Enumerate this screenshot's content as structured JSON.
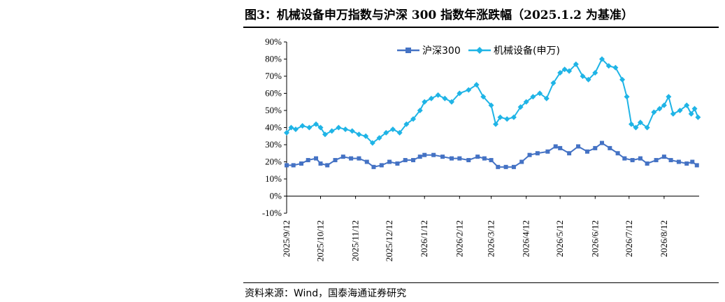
{
  "title": "图3：机械设备申万指数与沪深 300 指数年涨跌幅（2025.1.2 为基准）",
  "source": "资料来源：Wind，国泰海通证券研究",
  "colors": {
    "hs300": "#4472C4",
    "machinery": "#1FB4E6"
  },
  "chart_data": {
    "type": "line",
    "title": "图3：机械设备申万指数与沪深 300 指数年涨跌幅（2025.1.2 为基准）",
    "xlabel": "",
    "ylabel": "",
    "ylim": [
      -10,
      90
    ],
    "yticks": [
      -10,
      0,
      10,
      20,
      30,
      40,
      50,
      60,
      70,
      80,
      90
    ],
    "ytick_labels": [
      "-10%",
      "0%",
      "10%",
      "20%",
      "30%",
      "40%",
      "50%",
      "60%",
      "70%",
      "80%",
      "90%"
    ],
    "xlim": [
      "2025-09-12",
      "2026-09-12"
    ],
    "xticks": [
      "2025/9/12",
      "2025/10/12",
      "2025/11/12",
      "2025/12/12",
      "2026/1/12",
      "2026/2/12",
      "2026/3/12",
      "2026/4/12",
      "2026/5/12",
      "2026/6/12",
      "2026/7/12",
      "2026/8/12"
    ],
    "legend_position": "top-center",
    "grid": false,
    "series": [
      {
        "name": "沪深300",
        "color": "#4472C4",
        "marker": "square",
        "points": [
          [
            "2025-09-12",
            18
          ],
          [
            "2025-09-18",
            18
          ],
          [
            "2025-09-25",
            19
          ],
          [
            "2025-10-01",
            21
          ],
          [
            "2025-10-08",
            22
          ],
          [
            "2025-10-12",
            19
          ],
          [
            "2025-10-18",
            18
          ],
          [
            "2025-10-25",
            21
          ],
          [
            "2025-11-01",
            23
          ],
          [
            "2025-11-08",
            22
          ],
          [
            "2025-11-15",
            22
          ],
          [
            "2025-11-22",
            20
          ],
          [
            "2025-11-28",
            17
          ],
          [
            "2025-12-05",
            18
          ],
          [
            "2025-12-12",
            20
          ],
          [
            "2025-12-19",
            19
          ],
          [
            "2025-12-26",
            21
          ],
          [
            "2026-01-02",
            21
          ],
          [
            "2026-01-08",
            23
          ],
          [
            "2026-01-12",
            24
          ],
          [
            "2026-01-20",
            24
          ],
          [
            "2026-01-28",
            23
          ],
          [
            "2026-02-05",
            22
          ],
          [
            "2026-02-12",
            22
          ],
          [
            "2026-02-20",
            21
          ],
          [
            "2026-02-28",
            23
          ],
          [
            "2026-03-06",
            22
          ],
          [
            "2026-03-12",
            21
          ],
          [
            "2026-03-18",
            17
          ],
          [
            "2026-03-25",
            17
          ],
          [
            "2026-04-01",
            17
          ],
          [
            "2026-04-08",
            20
          ],
          [
            "2026-04-15",
            24
          ],
          [
            "2026-04-22",
            25
          ],
          [
            "2026-05-01",
            26
          ],
          [
            "2026-05-08",
            29
          ],
          [
            "2026-05-12",
            28
          ],
          [
            "2026-05-20",
            25
          ],
          [
            "2026-05-28",
            29
          ],
          [
            "2026-06-05",
            26
          ],
          [
            "2026-06-12",
            28
          ],
          [
            "2026-06-18",
            31
          ],
          [
            "2026-06-25",
            28
          ],
          [
            "2026-07-02",
            25
          ],
          [
            "2026-07-08",
            22
          ],
          [
            "2026-07-15",
            21
          ],
          [
            "2026-07-22",
            22
          ],
          [
            "2026-07-28",
            19
          ],
          [
            "2026-08-05",
            21
          ],
          [
            "2026-08-12",
            23
          ],
          [
            "2026-08-18",
            21
          ],
          [
            "2026-08-25",
            20
          ],
          [
            "2026-09-01",
            19
          ],
          [
            "2026-09-06",
            20
          ],
          [
            "2026-09-10",
            18
          ]
        ]
      },
      {
        "name": "机械设备(申万)",
        "color": "#1FB4E6",
        "marker": "diamond",
        "points": [
          [
            "2025-09-12",
            37
          ],
          [
            "2025-09-16",
            40
          ],
          [
            "2025-09-20",
            39
          ],
          [
            "2025-09-26",
            41
          ],
          [
            "2025-10-02",
            40
          ],
          [
            "2025-10-08",
            42
          ],
          [
            "2025-10-12",
            40
          ],
          [
            "2025-10-16",
            36
          ],
          [
            "2025-10-22",
            38
          ],
          [
            "2025-10-28",
            40
          ],
          [
            "2025-11-03",
            39
          ],
          [
            "2025-11-09",
            38
          ],
          [
            "2025-11-15",
            36
          ],
          [
            "2025-11-21",
            35
          ],
          [
            "2025-11-27",
            31
          ],
          [
            "2025-12-03",
            34
          ],
          [
            "2025-12-09",
            37
          ],
          [
            "2025-12-15",
            39
          ],
          [
            "2025-12-21",
            37
          ],
          [
            "2025-12-27",
            42
          ],
          [
            "2026-01-02",
            45
          ],
          [
            "2026-01-08",
            50
          ],
          [
            "2026-01-12",
            55
          ],
          [
            "2026-01-18",
            57
          ],
          [
            "2026-01-24",
            59
          ],
          [
            "2026-01-30",
            57
          ],
          [
            "2026-02-05",
            55
          ],
          [
            "2026-02-12",
            60
          ],
          [
            "2026-02-20",
            62
          ],
          [
            "2026-02-27",
            65
          ],
          [
            "2026-03-05",
            58
          ],
          [
            "2026-03-12",
            53
          ],
          [
            "2026-03-16",
            42
          ],
          [
            "2026-03-20",
            46
          ],
          [
            "2026-03-26",
            45
          ],
          [
            "2026-04-01",
            46
          ],
          [
            "2026-04-07",
            52
          ],
          [
            "2026-04-12",
            55
          ],
          [
            "2026-04-18",
            58
          ],
          [
            "2026-04-24",
            60
          ],
          [
            "2026-04-30",
            57
          ],
          [
            "2026-05-06",
            66
          ],
          [
            "2026-05-12",
            72
          ],
          [
            "2026-05-16",
            74
          ],
          [
            "2026-05-20",
            73
          ],
          [
            "2026-05-26",
            77
          ],
          [
            "2026-06-01",
            70
          ],
          [
            "2026-06-06",
            68
          ],
          [
            "2026-06-12",
            72
          ],
          [
            "2026-06-18",
            80
          ],
          [
            "2026-06-24",
            76
          ],
          [
            "2026-06-30",
            75
          ],
          [
            "2026-07-06",
            68
          ],
          [
            "2026-07-10",
            58
          ],
          [
            "2026-07-14",
            42
          ],
          [
            "2026-07-18",
            40
          ],
          [
            "2026-07-22",
            43
          ],
          [
            "2026-07-28",
            40
          ],
          [
            "2026-08-03",
            49
          ],
          [
            "2026-08-08",
            51
          ],
          [
            "2026-08-12",
            53
          ],
          [
            "2026-08-16",
            58
          ],
          [
            "2026-08-20",
            48
          ],
          [
            "2026-08-26",
            50
          ],
          [
            "2026-09-01",
            53
          ],
          [
            "2026-09-05",
            48
          ],
          [
            "2026-09-08",
            51
          ],
          [
            "2026-09-11",
            46
          ]
        ]
      }
    ]
  }
}
